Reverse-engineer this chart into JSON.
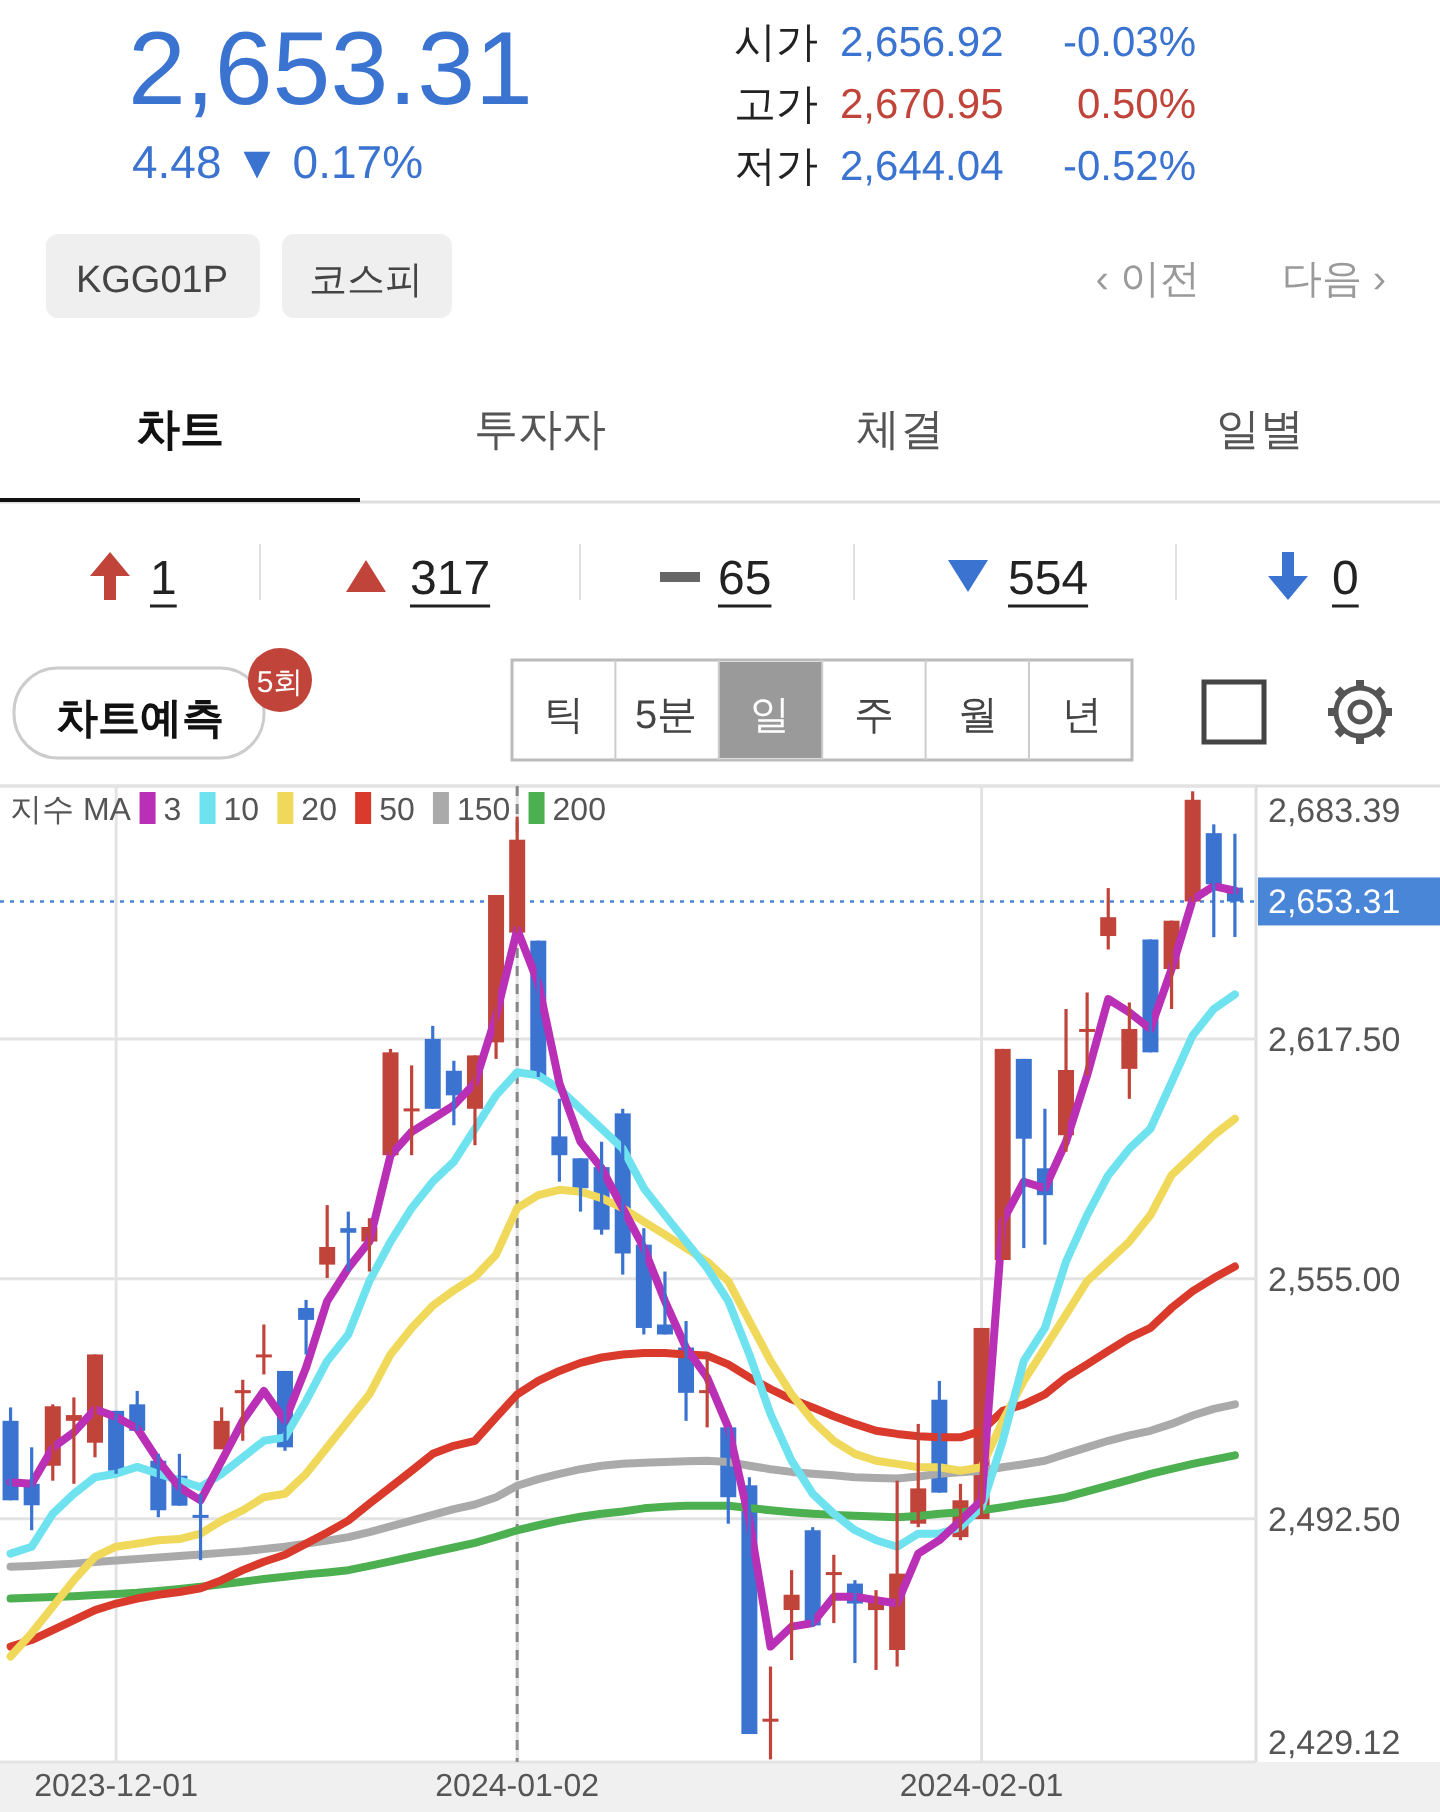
{
  "chart_data": {
    "type": "candlestick",
    "title": "2,653.31",
    "subtitle": "4.48 ▼ 0.17%",
    "annotations": [
      "시가",
      "2,656.92",
      "-0.03%",
      "고가",
      "2,670.95",
      "0.50%",
      "저가",
      "2,644.04",
      "-0.52%",
      "KGG01P",
      "코스피",
      "‹ 이전",
      "다음 ›",
      "차트",
      "투자자",
      "체결",
      "일별",
      "1",
      "317",
      "65",
      "554",
      "0",
      "차트예측",
      "5회",
      "틱",
      "5분",
      "일",
      "주",
      "월",
      "년"
    ],
    "categories": [
      null,
      null,
      null,
      null,
      null,
      "2023-12-01",
      null,
      null,
      null,
      null,
      null,
      null,
      null,
      null,
      null,
      null,
      null,
      null,
      null,
      null,
      null,
      null,
      null,
      null,
      "2024-01-02",
      null,
      null,
      null,
      null,
      null,
      null,
      null,
      null,
      null,
      null,
      null,
      null,
      null,
      null,
      null,
      null,
      null,
      null,
      null,
      null,
      null,
      "2024-02-01",
      null,
      null,
      null,
      null,
      null,
      null,
      null,
      null,
      null,
      null,
      null,
      null
    ],
    "ohlc": [
      [
        2518.0,
        2521.5,
        2497.3,
        2497.3
      ],
      [
        2501.6,
        2511.1,
        2489.5,
        2496.0
      ],
      [
        2506.3,
        2522.3,
        2502.4,
        2521.8
      ],
      [
        2518.0,
        2524.1,
        2501.6,
        2519.5
      ],
      [
        2512.3,
        2535.3,
        2508.5,
        2535.3
      ],
      [
        2520.6,
        2520.6,
        2504.2,
        2505.0
      ],
      [
        2522.3,
        2525.8,
        2515.4,
        2515.4
      ],
      [
        2507.6,
        2509.4,
        2492.9,
        2494.7
      ],
      [
        2503.7,
        2509.4,
        2495.9,
        2495.9
      ],
      [
        2493.5,
        2499.0,
        2481.7,
        2492.9
      ],
      [
        2510.6,
        2521.5,
        2510.6,
        2518.0
      ],
      [
        2525.2,
        2528.7,
        2512.8,
        2526.0
      ],
      [
        2535.0,
        2543.1,
        2530.1,
        2535.3
      ],
      [
        2531.0,
        2531.0,
        2510.2,
        2511.1
      ],
      [
        2547.4,
        2549.5,
        2535.3,
        2544.3
      ],
      [
        2558.7,
        2574.2,
        2555.2,
        2563.3
      ],
      [
        2568.2,
        2572.5,
        2556.9,
        2567.0
      ],
      [
        2564.7,
        2570.8,
        2556.9,
        2568.5
      ],
      [
        2587.2,
        2614.9,
        2587.2,
        2614.0
      ],
      [
        2599.0,
        2610.6,
        2587.2,
        2599.4
      ],
      [
        2617.5,
        2620.9,
        2599.3,
        2599.3
      ],
      [
        2609.2,
        2611.8,
        2595.0,
        2602.8
      ],
      [
        2599.3,
        2613.2,
        2589.8,
        2613.2
      ],
      [
        2616.6,
        2655.0,
        2612.3,
        2655.0
      ],
      [
        2645.2,
        2675.4,
        2645.2,
        2669.4
      ],
      [
        2643.1,
        2643.1,
        2607.6,
        2607.6
      ],
      [
        2592.1,
        2601.9,
        2580.3,
        2587.2
      ],
      [
        2586.4,
        2586.4,
        2572.5,
        2578.6
      ],
      [
        2584.1,
        2590.7,
        2566.5,
        2567.8
      ],
      [
        2598.1,
        2599.3,
        2556.1,
        2561.6
      ],
      [
        2563.9,
        2568.2,
        2540.5,
        2542.2
      ],
      [
        2543.1,
        2556.9,
        2540.5,
        2540.5
      ],
      [
        2537.1,
        2544.0,
        2518.0,
        2525.3
      ],
      [
        2525.6,
        2535.3,
        2516.3,
        2526.0
      ],
      [
        2516.3,
        2516.3,
        2491.2,
        2498.1
      ],
      [
        2501.2,
        2503.3,
        2436.4,
        2436.4
      ],
      [
        2440.1,
        2454.0,
        2429.8,
        2440.4
      ],
      [
        2468.7,
        2479.1,
        2455.7,
        2472.7
      ],
      [
        2489.5,
        2490.3,
        2464.4,
        2464.7
      ],
      [
        2478.5,
        2483.1,
        2465.3,
        2478.6
      ],
      [
        2475.6,
        2476.5,
        2454.9,
        2470.4
      ],
      [
        2468.7,
        2473.9,
        2453.1,
        2471.3
      ],
      [
        2458.3,
        2502.4,
        2454.0,
        2478.2
      ],
      [
        2491.2,
        2517.2,
        2490.3,
        2500.4
      ],
      [
        2523.5,
        2528.4,
        2499.3,
        2499.3
      ],
      [
        2487.7,
        2501.6,
        2486.9,
        2497.3
      ],
      [
        2492.4,
        2542.2,
        2492.4,
        2542.2
      ],
      [
        2559.9,
        2614.9,
        2559.9,
        2614.9
      ],
      [
        2612.3,
        2612.3,
        2563.0,
        2591.5
      ],
      [
        2583.8,
        2599.3,
        2563.9,
        2576.8
      ],
      [
        2592.4,
        2625.3,
        2588.1,
        2609.4
      ],
      [
        2619.9,
        2629.6,
        2608.0,
        2620.1
      ],
      [
        2644.3,
        2656.8,
        2640.8,
        2649.2
      ],
      [
        2609.7,
        2627.0,
        2601.9,
        2620.1
      ],
      [
        2643.4,
        2643.4,
        2614.0,
        2614.0
      ],
      [
        2635.7,
        2648.3,
        2625.3,
        2648.3
      ],
      [
        2653.3,
        2682.0,
        2653.3,
        2679.8
      ],
      [
        2671.1,
        2673.4,
        2644.0,
        2657.8
      ],
      [
        2656.92,
        2670.95,
        2644.04,
        2653.31
      ]
    ],
    "colors": [
      "#3b73d1",
      "#3b73d1",
      "#c0443a",
      "#c0443a",
      "#c0443a",
      "#3b73d1",
      "#3b73d1",
      "#3b73d1",
      "#3b73d1",
      "#3b73d1",
      "#c0443a",
      "#c0443a",
      "#c0443a",
      "#3b73d1",
      "#3b73d1",
      "#c0443a",
      "#3b73d1",
      "#c0443a",
      "#c0443a",
      "#c0443a",
      "#3b73d1",
      "#3b73d1",
      "#c0443a",
      "#c0443a",
      "#c0443a",
      "#3b73d1",
      "#3b73d1",
      "#3b73d1",
      "#3b73d1",
      "#3b73d1",
      "#3b73d1",
      "#3b73d1",
      "#3b73d1",
      "#c0443a",
      "#3b73d1",
      "#3b73d1",
      "#c0443a",
      "#c0443a",
      "#3b73d1",
      "#c0443a",
      "#3b73d1",
      "#c0443a",
      "#c0443a",
      "#c0443a",
      "#3b73d1",
      "#c0443a",
      "#c0443a",
      "#c0443a",
      "#3b73d1",
      "#3b73d1",
      "#c0443a",
      "#c0443a",
      "#c0443a",
      "#c0443a",
      "#3b73d1",
      "#c0443a",
      "#c0443a",
      "#3b73d1",
      "#3b73d1"
    ],
    "legend_title": "지수 MA",
    "legend": "top left",
    "grid": true,
    "ylim": [
      2429.12,
      2683.39
    ],
    "yticks": [
      {
        "value": 2429.12,
        "label": "2,429.12"
      },
      {
        "value": 2492.5,
        "label": "2,492.50"
      },
      {
        "value": 2555.0,
        "label": "2,555.00"
      },
      {
        "value": 2617.5,
        "label": "2,617.50"
      },
      {
        "value": 2683.39,
        "label": "2,683.39"
      }
    ],
    "ref_lines": [
      {
        "axis": "y",
        "value": 2653.31,
        "label": "2,653.31",
        "color": "#4a86d8",
        "line_style": "dotted"
      },
      {
        "axis": "x",
        "value": "2024-01-02",
        "color": "#888888",
        "line_style": "dashed"
      }
    ],
    "series": [
      {
        "type": "line",
        "name": "3",
        "color": "#b92fb5",
        "values": [
          2502.0,
          2501.6,
          2511.0,
          2515.0,
          2521.0,
          2519.0,
          2516.0,
          2507.6,
          2500.7,
          2497.3,
          2507.6,
          2518.0,
          2525.8,
          2518.0,
          2531.9,
          2549.2,
          2557.8,
          2564.7,
          2587.2,
          2593.3,
          2596.7,
          2600.2,
          2606.0,
          2623.5,
          2646.0,
          2632.0,
          2606.0,
          2590.7,
          2583.8,
          2573.4,
          2563.0,
          2549.2,
          2537.0,
          2529.3,
          2516.3,
          2492.0,
          2459.2,
          2464.4,
          2465.3,
          2472.2,
          2472.2,
          2471.3,
          2470.4,
          2483.4,
          2486.9,
          2492.0,
          2497.3,
          2570.0,
          2580.3,
          2578.6,
          2590.7,
          2608.0,
          2627.9,
          2624.4,
          2620.1,
          2635.7,
          2653.8,
          2657.3,
          2656.1
        ]
      },
      {
        "type": "line",
        "name": "10",
        "color": "#6ee3ef",
        "values": [
          2483.4,
          2485.2,
          2493.8,
          2499.0,
          2503.3,
          2504.2,
          2506.0,
          2504.2,
          2502.5,
          2500.7,
          2504.2,
          2508.5,
          2512.8,
          2513.7,
          2523.2,
          2533.6,
          2540.5,
          2554.4,
          2564.7,
          2573.4,
          2580.3,
          2585.5,
          2594.1,
          2602.8,
          2608.8,
          2608.0,
          2604.5,
          2599.3,
          2594.1,
          2588.9,
          2578.6,
          2571.6,
          2564.7,
          2557.8,
          2549.2,
          2535.3,
          2519.8,
          2507.6,
          2499.0,
          2493.8,
          2489.5,
          2486.9,
          2485.2,
          2488.6,
          2488.6,
          2490.3,
          2495.5,
          2512.8,
          2533.6,
          2542.2,
          2559.5,
          2571.6,
          2582.0,
          2588.9,
          2594.1,
          2606.2,
          2618.4,
          2625.3,
          2629.1
        ]
      },
      {
        "type": "line",
        "name": "20",
        "color": "#f0d95a",
        "values": [
          2456.6,
          2462.7,
          2469.6,
          2476.5,
          2482.6,
          2485.2,
          2486.0,
          2486.9,
          2487.2,
          2488.6,
          2492.0,
          2494.7,
          2498.1,
          2499.0,
          2504.2,
          2511.1,
          2518.0,
          2524.9,
          2535.3,
          2542.2,
          2548.0,
          2552.0,
          2555.5,
          2561.3,
          2573.4,
          2576.8,
          2578.2,
          2577.7,
          2576.0,
          2573.4,
          2569.9,
          2566.5,
          2563.0,
          2559.5,
          2554.4,
          2544.0,
          2533.6,
          2524.9,
          2518.0,
          2512.8,
          2509.4,
          2507.6,
          2506.8,
          2505.9,
          2505.9,
          2505.0,
          2505.9,
          2518.0,
          2528.4,
          2537.0,
          2545.7,
          2554.4,
          2559.5,
          2564.7,
          2571.6,
          2582.0,
          2587.2,
          2592.4,
          2596.7
        ]
      },
      {
        "type": "line",
        "name": "50",
        "color": "#d93a2b",
        "values": [
          2459.2,
          2460.9,
          2463.5,
          2466.1,
          2468.7,
          2470.4,
          2471.7,
          2472.7,
          2473.4,
          2474.4,
          2476.5,
          2479.1,
          2481.3,
          2483.1,
          2486.0,
          2488.9,
          2492.0,
          2496.4,
          2500.7,
          2505.0,
          2509.4,
          2511.5,
          2512.8,
          2518.9,
          2524.9,
          2528.4,
          2531.0,
          2533.1,
          2534.5,
          2535.3,
          2535.7,
          2535.7,
          2535.3,
          2535.0,
          2532.7,
          2529.3,
          2526.3,
          2523.6,
          2521.5,
          2519.2,
          2517.2,
          2515.4,
          2514.6,
          2514.0,
          2513.7,
          2513.7,
          2515.4,
          2520.6,
          2522.3,
          2524.9,
          2529.3,
          2532.7,
          2536.2,
          2539.6,
          2542.2,
          2547.4,
          2551.8,
          2555.2,
          2558.2
        ]
      },
      {
        "type": "line",
        "name": "150",
        "color": "#aaaaaa",
        "values": [
          2480.0,
          2480.2,
          2480.5,
          2480.8,
          2481.2,
          2481.6,
          2482.0,
          2482.4,
          2482.8,
          2483.2,
          2483.6,
          2484.0,
          2484.6,
          2485.2,
          2486.0,
          2486.8,
          2487.7,
          2489.0,
          2490.5,
          2492.0,
          2493.5,
          2495.0,
          2496.2,
          2498.1,
          2501.1,
          2502.8,
          2504.2,
          2505.4,
          2506.3,
          2506.8,
          2507.1,
          2507.3,
          2507.5,
          2507.6,
          2507.3,
          2506.3,
          2505.4,
          2504.7,
          2504.2,
          2503.8,
          2503.3,
          2503.1,
          2503.0,
          2503.5,
          2504.2,
          2504.6,
          2505.0,
          2505.9,
          2506.7,
          2507.6,
          2509.4,
          2511.1,
          2512.8,
          2514.2,
          2515.4,
          2517.2,
          2519.4,
          2521.1,
          2522.3
        ]
      },
      {
        "type": "line",
        "name": "200",
        "color": "#4caf50",
        "values": [
          2471.7,
          2471.9,
          2472.1,
          2472.3,
          2472.6,
          2472.9,
          2473.2,
          2473.7,
          2474.2,
          2474.8,
          2475.4,
          2476.1,
          2476.8,
          2477.4,
          2478.0,
          2478.5,
          2479.1,
          2480.2,
          2481.4,
          2482.6,
          2483.8,
          2485.0,
          2486.2,
          2487.8,
          2489.5,
          2490.8,
          2492.0,
          2493.0,
          2493.8,
          2494.4,
          2495.2,
          2495.6,
          2495.9,
          2495.9,
          2495.9,
          2495.3,
          2494.7,
          2494.2,
          2493.8,
          2493.5,
          2493.3,
          2493.1,
          2492.9,
          2493.2,
          2493.8,
          2494.2,
          2494.7,
          2495.5,
          2496.4,
          2497.2,
          2498.1,
          2499.6,
          2501.1,
          2502.6,
          2504.2,
          2505.5,
          2506.8,
          2507.9,
          2509.0
        ]
      }
    ]
  }
}
